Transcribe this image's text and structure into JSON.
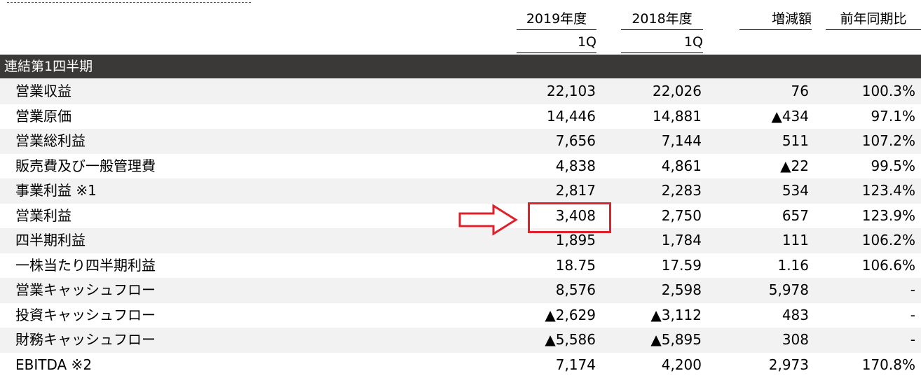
{
  "header": {
    "col_2019": "2019年度",
    "col_2019_sub": "1Q",
    "col_2018": "2018年度",
    "col_2018_sub": "1Q",
    "col_diff": "増減額",
    "col_ratio": "前年同期比"
  },
  "section": {
    "title": "連結第1四半期"
  },
  "rows": [
    {
      "label": "営業収益",
      "v2019": "22,103",
      "v2018": "22,026",
      "diff": "76",
      "ratio": "100.3%"
    },
    {
      "label": "営業原価",
      "v2019": "14,446",
      "v2018": "14,881",
      "diff": "▲434",
      "ratio": "97.1%"
    },
    {
      "label": "営業総利益",
      "v2019": "7,656",
      "v2018": "7,144",
      "diff": "511",
      "ratio": "107.2%"
    },
    {
      "label": "販売費及び一般管理費",
      "v2019": "4,838",
      "v2018": "4,861",
      "diff": "▲22",
      "ratio": "99.5%"
    },
    {
      "label": "事業利益 ※1",
      "v2019": "2,817",
      "v2018": "2,283",
      "diff": "534",
      "ratio": "123.4%"
    },
    {
      "label": "営業利益",
      "v2019": "3,408",
      "v2018": "2,750",
      "diff": "657",
      "ratio": "123.9%"
    },
    {
      "label": "四半期利益",
      "v2019": "1,895",
      "v2018": "1,784",
      "diff": "111",
      "ratio": "106.2%"
    },
    {
      "label": "一株当たり四半期利益",
      "v2019": "18.75",
      "v2018": "17.59",
      "diff": "1.16",
      "ratio": "106.6%"
    },
    {
      "label": "営業キャッシュフロー",
      "v2019": "8,576",
      "v2018": "2,598",
      "diff": "5,978",
      "ratio": "-"
    },
    {
      "label": "投資キャッシュフロー",
      "v2019": "▲2,629",
      "v2018": "▲3,112",
      "diff": "483",
      "ratio": "-"
    },
    {
      "label": "財務キャッシュフロー",
      "v2019": "▲5,586",
      "v2018": "▲5,895",
      "diff": "308",
      "ratio": "-"
    },
    {
      "label": "EBITDA ※2",
      "v2019": "7,174",
      "v2018": "4,200",
      "diff": "2,973",
      "ratio": "170.8%"
    }
  ],
  "colors": {
    "section_bar": "#3b3838",
    "row_shade": "#f2f2f2",
    "highlight": "#e0202a"
  }
}
